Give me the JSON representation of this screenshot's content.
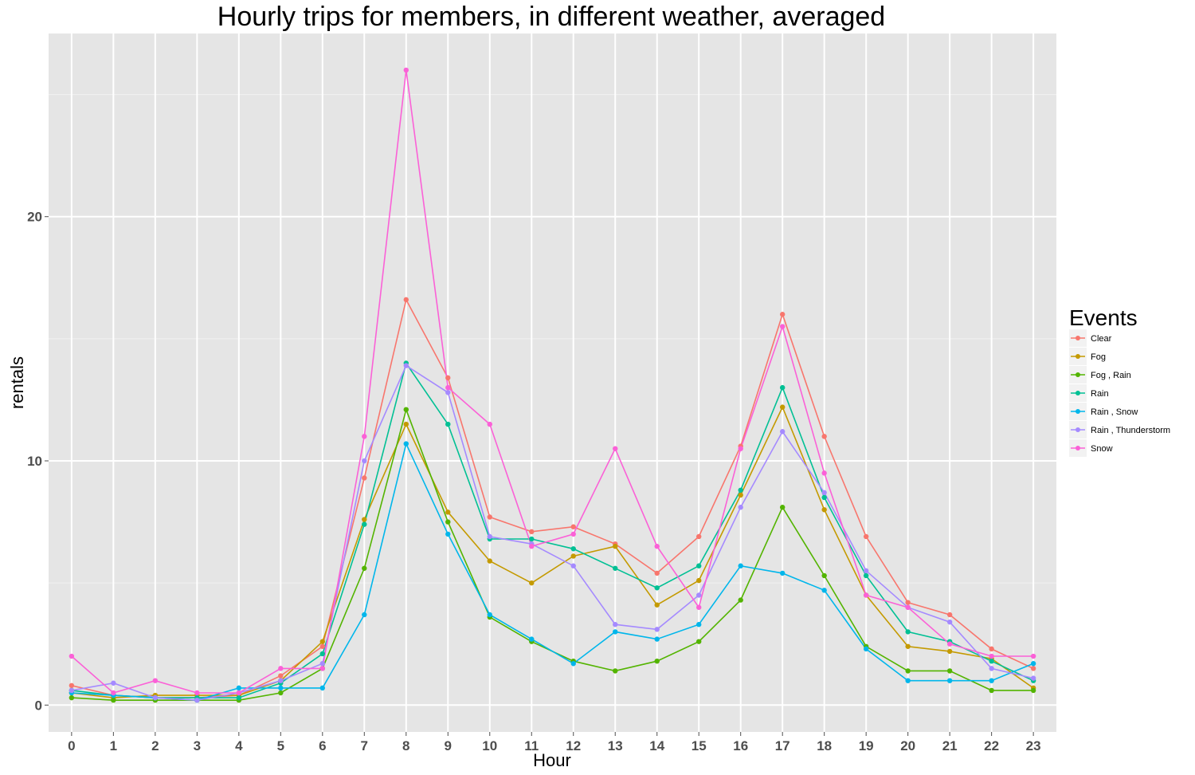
{
  "chart_data": {
    "type": "line",
    "title": "Hourly trips for members, in different weather, averaged",
    "xlabel": "Hour",
    "ylabel": "rentals",
    "x": [
      0,
      1,
      2,
      3,
      4,
      5,
      6,
      7,
      8,
      9,
      10,
      11,
      12,
      13,
      14,
      15,
      16,
      17,
      18,
      19,
      20,
      21,
      22,
      23
    ],
    "xlim": [
      -0.55,
      23.55
    ],
    "ylim": [
      -1.1,
      27.5
    ],
    "y_ticks": [
      0,
      10,
      20
    ],
    "grid": true,
    "legend_title": "Events",
    "legend_position": "right",
    "series": [
      {
        "name": "Clear",
        "color": "#F8766D",
        "values": [
          0.8,
          0.4,
          0.3,
          0.3,
          0.4,
          1.2,
          2.4,
          9.3,
          16.6,
          13.4,
          7.7,
          7.1,
          7.3,
          6.6,
          5.4,
          6.9,
          10.6,
          16.0,
          11.0,
          6.9,
          4.2,
          3.7,
          2.3,
          1.5
        ]
      },
      {
        "name": "Fog",
        "color": "#C49A00",
        "values": [
          0.5,
          0.3,
          0.4,
          0.4,
          0.4,
          1.0,
          2.6,
          7.6,
          11.5,
          7.9,
          5.9,
          5.0,
          6.1,
          6.5,
          4.1,
          5.1,
          8.6,
          12.2,
          8.0,
          4.5,
          2.4,
          2.2,
          1.9,
          0.7
        ]
      },
      {
        "name": "Fog , Rain",
        "color": "#53B400",
        "values": [
          0.3,
          0.2,
          0.2,
          0.2,
          0.2,
          0.5,
          1.5,
          5.6,
          12.1,
          7.5,
          3.6,
          2.6,
          1.8,
          1.4,
          1.8,
          2.6,
          4.3,
          8.1,
          5.3,
          2.4,
          1.4,
          1.4,
          0.6,
          0.6
        ]
      },
      {
        "name": "Rain",
        "color": "#00C094",
        "values": [
          0.6,
          0.4,
          0.3,
          0.3,
          0.3,
          0.9,
          2.1,
          7.4,
          14.0,
          11.5,
          6.8,
          6.8,
          6.4,
          5.6,
          4.8,
          5.7,
          8.8,
          13.0,
          8.5,
          5.3,
          3.0,
          2.6,
          1.8,
          1.0
        ]
      },
      {
        "name": "Rain , Snow",
        "color": "#00B6EB",
        "values": [
          0.5,
          0.4,
          0.3,
          0.2,
          0.7,
          0.7,
          0.7,
          3.7,
          10.7,
          7.0,
          3.7,
          2.7,
          1.7,
          3.0,
          2.7,
          3.3,
          5.7,
          5.4,
          4.7,
          2.3,
          1.0,
          1.0,
          1.0,
          1.7
        ]
      },
      {
        "name": "Rain , Thunderstorm",
        "color": "#A58AFF",
        "values": [
          0.6,
          0.9,
          0.3,
          0.2,
          0.5,
          1.0,
          1.7,
          10.0,
          13.9,
          12.8,
          6.9,
          6.6,
          5.7,
          3.3,
          3.1,
          4.5,
          8.1,
          11.2,
          8.7,
          5.5,
          4.0,
          3.4,
          1.5,
          1.1
        ]
      },
      {
        "name": "Snow",
        "color": "#FB61D7",
        "values": [
          2.0,
          0.5,
          1.0,
          0.5,
          0.5,
          1.5,
          1.5,
          11.0,
          26.0,
          13.0,
          11.5,
          6.5,
          7.0,
          10.5,
          6.5,
          4.0,
          10.5,
          15.5,
          9.5,
          4.5,
          4.0,
          2.5,
          2.0,
          2.0
        ]
      }
    ]
  }
}
